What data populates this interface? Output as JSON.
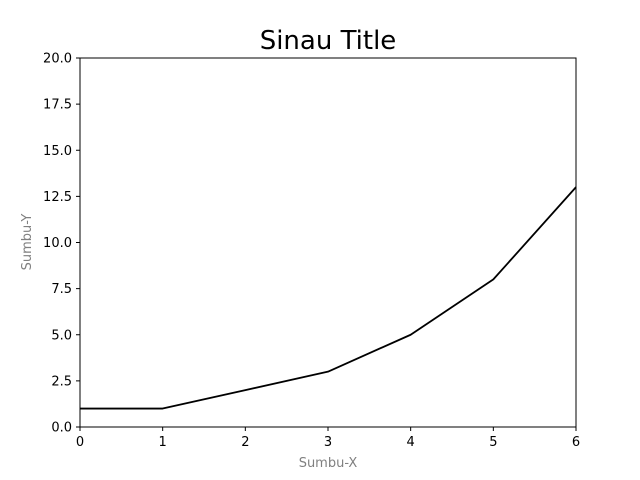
{
  "chart_data": {
    "type": "line",
    "title": "Sinau Title",
    "xlabel": "Sumbu-X",
    "ylabel": "Sumbu-Y",
    "label_color": "#808080",
    "line_color": "#000000",
    "grid": false,
    "xlim": [
      0,
      6
    ],
    "ylim": [
      0,
      20
    ],
    "x_ticks": [
      0,
      1,
      2,
      3,
      4,
      5,
      6
    ],
    "x_tick_labels": [
      "0",
      "1",
      "2",
      "3",
      "4",
      "5",
      "6"
    ],
    "y_ticks": [
      0,
      2.5,
      5,
      7.5,
      10,
      12.5,
      15,
      17.5,
      20
    ],
    "y_tick_labels": [
      "0.0",
      "2.5",
      "5.0",
      "7.5",
      "10.0",
      "12.5",
      "15.0",
      "17.5",
      "20.0"
    ],
    "series": [
      {
        "x": [
          0,
          1,
          2,
          3,
          4,
          5,
          6
        ],
        "y": [
          1,
          1,
          2,
          3,
          5,
          8,
          13
        ]
      }
    ]
  }
}
